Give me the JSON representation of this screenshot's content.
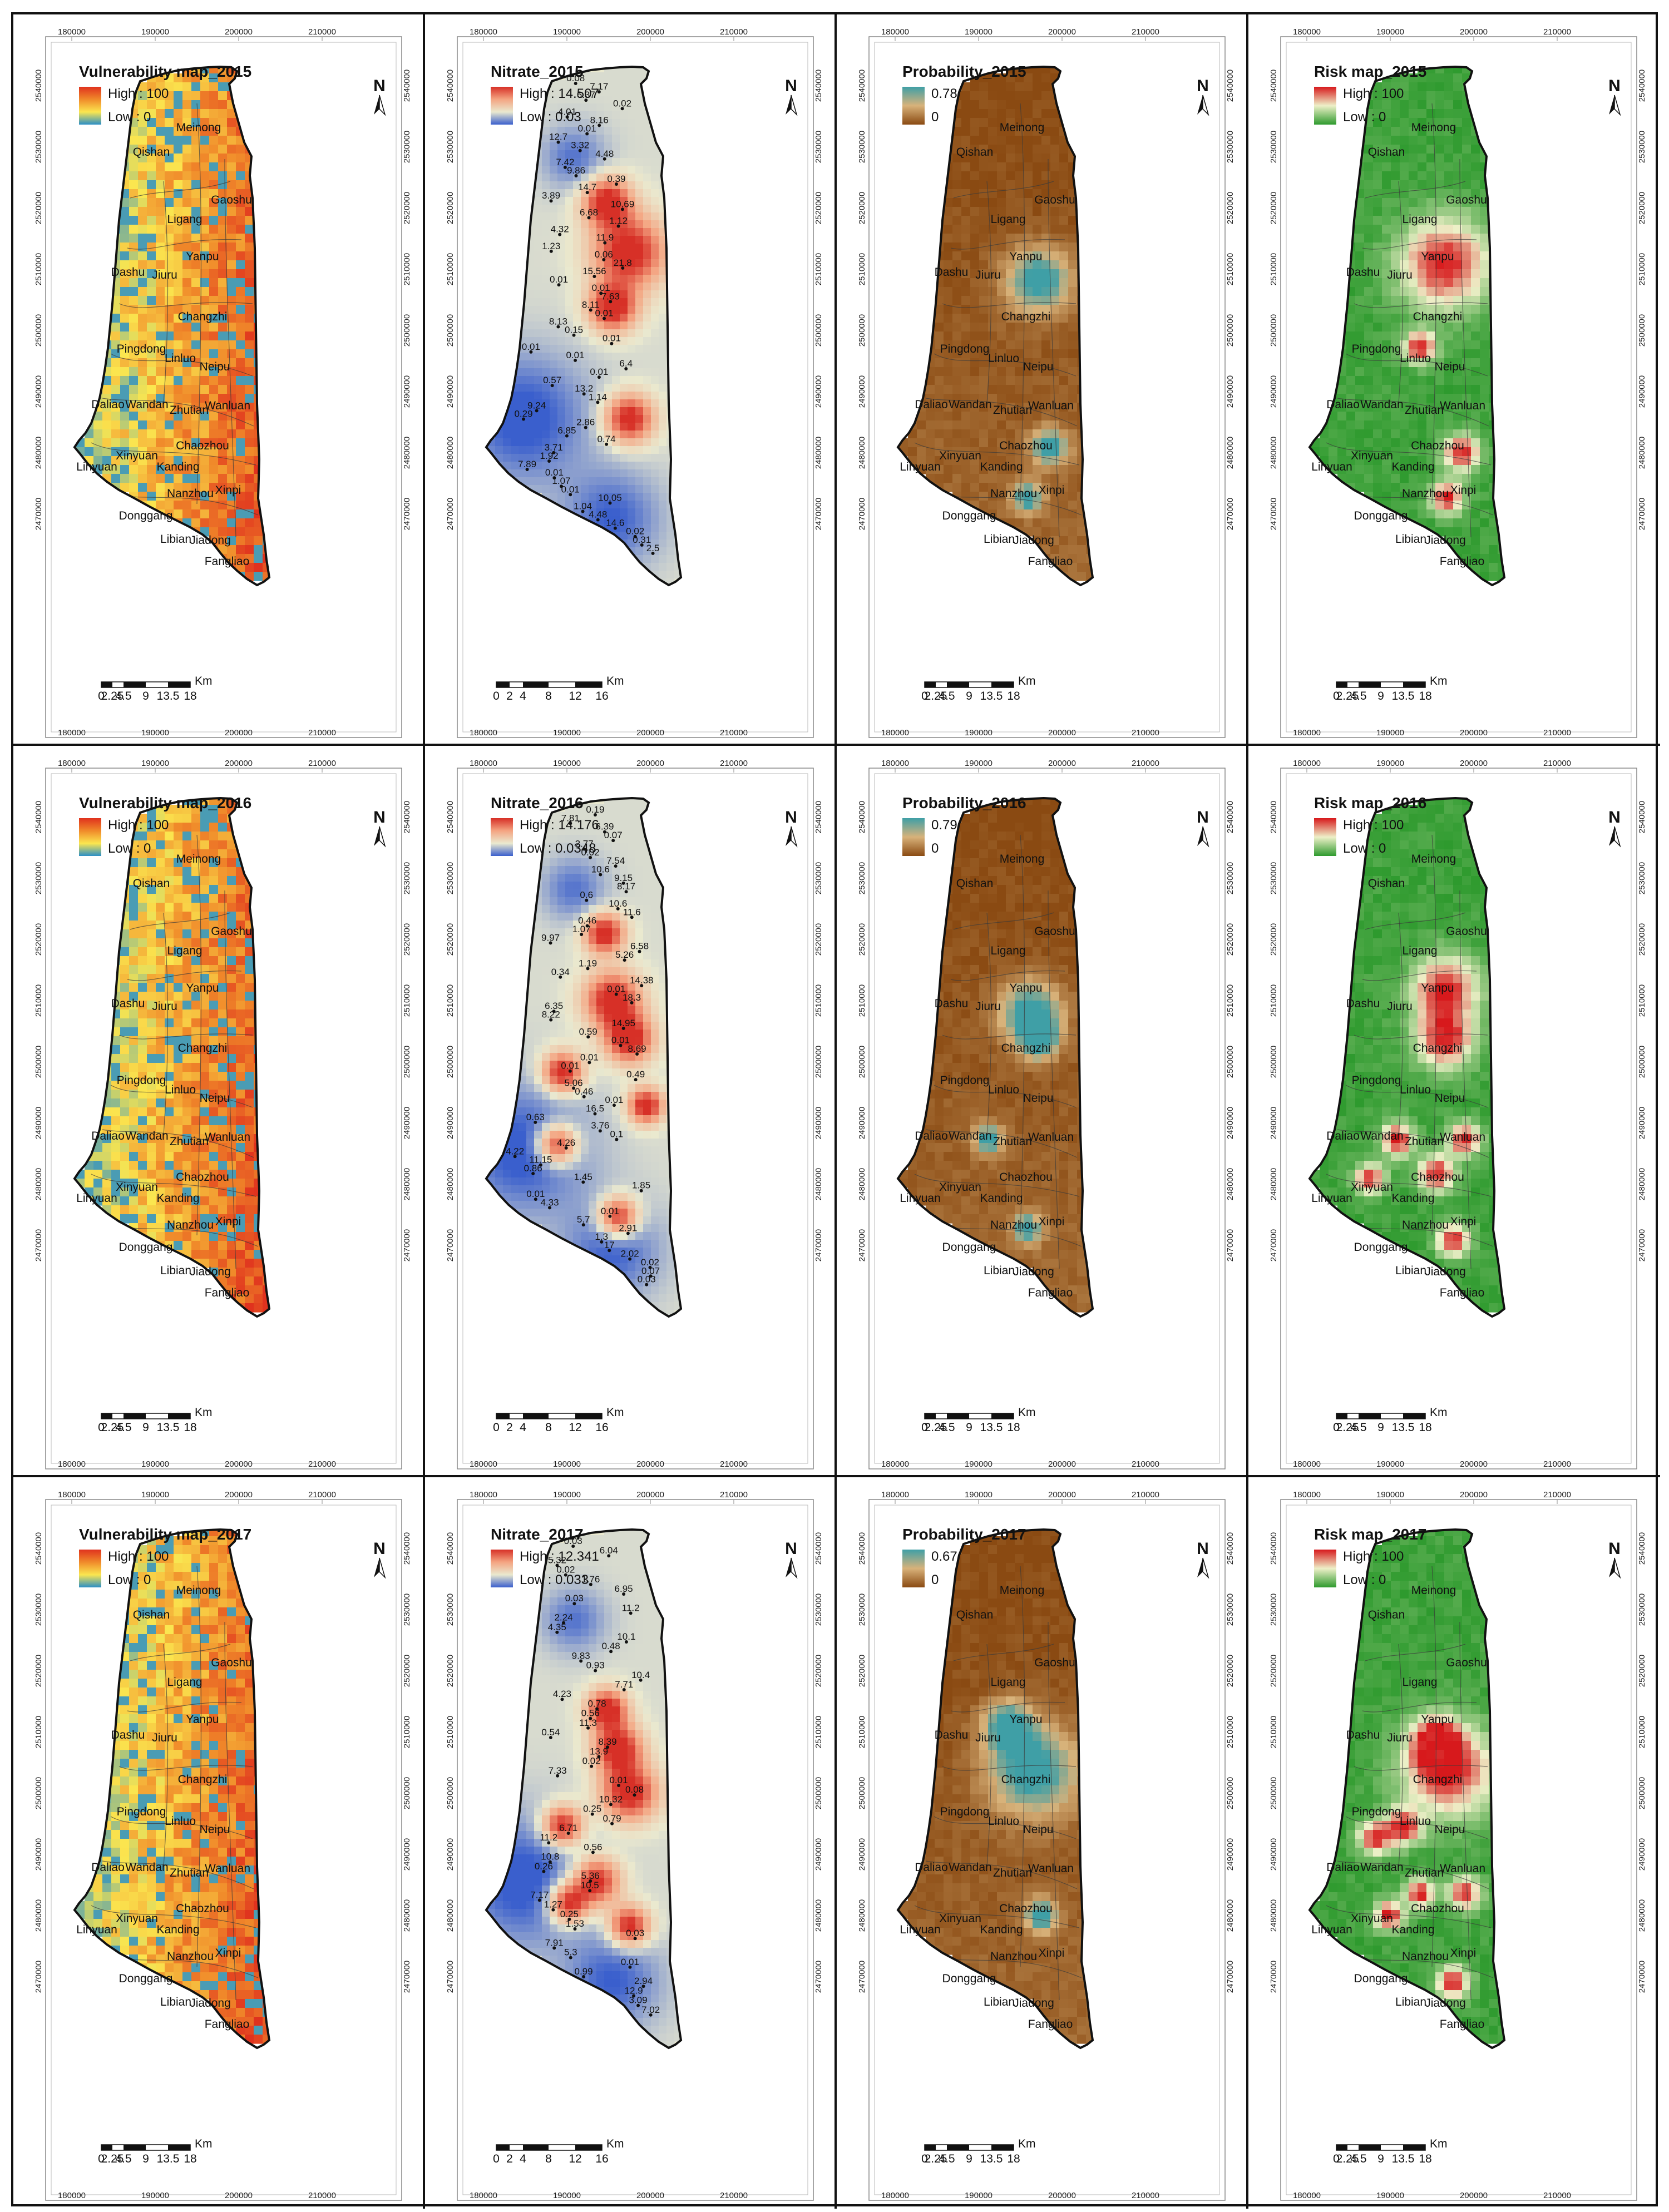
{
  "coords": {
    "x_ticks": [
      "180000",
      "190000",
      "200000",
      "210000"
    ],
    "y_ticks": [
      "2540000",
      "2530000",
      "2520000",
      "2510000",
      "2500000",
      "2490000",
      "2480000",
      "2470000"
    ]
  },
  "north_label": "N",
  "scalebar": {
    "a": {
      "labels": [
        "0",
        "2.25",
        "4.5",
        "9",
        "13.5",
        "18"
      ],
      "unit": "Km"
    },
    "b": {
      "labels": [
        "0",
        "2",
        "4",
        "8",
        "12",
        "16"
      ],
      "unit": "Km"
    }
  },
  "towns": [
    "Meinong",
    "Qishan",
    "Gaoshu",
    "Ligang",
    "Yanpu",
    "Dashu",
    "Jiuru",
    "Changzhi",
    "Pingdong",
    "Linluo",
    "Neipu",
    "Daliao",
    "Wandan",
    "Zhutian",
    "Wanluan",
    "Chaozhou",
    "Xinyuan",
    "Linyuan",
    "Kanding",
    "Nanzhou",
    "Xinpi",
    "Donggang",
    "Libian",
    "Jiadong",
    "Fangliao"
  ],
  "colors": {
    "vuln": [
      "#2b8fc6",
      "#fbe64f",
      "#f08a2a",
      "#e0321e"
    ],
    "nitrate": [
      "#3a5fcd",
      "#eae9cf",
      "#f4a582",
      "#d73027"
    ],
    "prob": [
      "#8a4a12",
      "#d8b27a",
      "#3f9fa6"
    ],
    "risk": [
      "#2e9a2e",
      "#eef0c8",
      "#d7191c"
    ]
  },
  "rows": [
    {
      "year": "2015",
      "vuln": {
        "title": "Vulnerability map_2015",
        "high": "High : 100",
        "low": "Low : 0"
      },
      "nitrate": {
        "title": "Nitrate_2015",
        "high": "High : 14.507",
        "low": "Low : 0.03",
        "values": [
          "0.08",
          "7.17",
          "6.37",
          "0.02",
          "4.01",
          "8.16",
          "0.01",
          "12.7",
          "3.32",
          "4.48",
          "7.42",
          "9.86",
          "0.39",
          "14.7",
          "3.89",
          "10.69",
          "6.68",
          "1.12",
          "4.32",
          "11.9",
          "1.23",
          "0.06",
          "21.8",
          "15.56",
          "0.01",
          "0.01",
          "7.63",
          "8.11",
          "0.01",
          "8.13",
          "0.15",
          "0.01",
          "0.01",
          "0.01",
          "6.4",
          "0.01",
          "0.57",
          "13.2",
          "1.14",
          "9.24",
          "0.29",
          "2.86",
          "6.85",
          "0.74",
          "3.71",
          "1.92",
          "7.89",
          "0.01",
          "1.07",
          "0.01",
          "10.05",
          "1.04",
          "4.48",
          "14.6",
          "0.02",
          "0.31",
          "2.5"
        ]
      },
      "prob": {
        "title": "Probability_2015",
        "high": "0.78",
        "low": "0"
      },
      "risk": {
        "title": "Risk map_2015",
        "high": "High : 100",
        "low": "Low : 0"
      }
    },
    {
      "year": "2016",
      "vuln": {
        "title": "Vulnerability map_2016",
        "high": "High : 100",
        "low": "Low : 0"
      },
      "nitrate": {
        "title": "Nitrate_2016",
        "high": "High : 14.176",
        "low": "Low : 0.0348",
        "values": [
          "0.19",
          "7.81",
          "6.39",
          "0.07",
          "2.77",
          "0.02",
          "7.54",
          "10.6",
          "9.15",
          "8.17",
          "0.6",
          "10.6",
          "11.6",
          "0.46",
          "1.07",
          "9.97",
          "6.58",
          "5.26",
          "1.19",
          "0.34",
          "14.38",
          "0.01",
          "18.3",
          "6.35",
          "8.22",
          "14.95",
          "0.59",
          "0.01",
          "8.69",
          "0.01",
          "0.01",
          "0.49",
          "5.06",
          "0.46",
          "0.01",
          "16.5",
          "0.63",
          "3.76",
          "0.1",
          "4.26",
          "4.22",
          "11.15",
          "0.86",
          "1.45",
          "1.85",
          "0.01",
          "4.33",
          "0.01",
          "5.7",
          "2.91",
          "1.3",
          "17",
          "2.02",
          "0.02",
          "0.07",
          "0.03"
        ]
      },
      "prob": {
        "title": "Probability_2016",
        "high": "0.79",
        "low": "0"
      },
      "risk": {
        "title": "Risk map_2016",
        "high": "High : 100",
        "low": "Low : 0"
      }
    },
    {
      "year": "2017",
      "vuln": {
        "title": "Vulnerability map_2017",
        "high": "High : 100",
        "low": "Low : 0"
      },
      "nitrate": {
        "title": "Nitrate_2017",
        "high": "High : 12.341",
        "low": "Low : 0.033",
        "values": [
          "0.03",
          "6.04",
          "5.32",
          "0.02",
          "1.76",
          "6.95",
          "0.03",
          "11.2",
          "2.24",
          "4.35",
          "10.1",
          "0.48",
          "9.83",
          "0.93",
          "10.4",
          "7.71",
          "4.23",
          "0.78",
          "0.56",
          "11.3",
          "0.54",
          "8.39",
          "13.9",
          "0.02",
          "7.33",
          "0.01",
          "0.08",
          "10.32",
          "0.25",
          "0.79",
          "6.71",
          "11.2",
          "0.56",
          "10.8",
          "0.26",
          "5.36",
          "10.5",
          "7.17",
          "1.27",
          "0.25",
          "1.53",
          "0.03",
          "7.91",
          "5.3",
          "0.01",
          "0.99",
          "2.94",
          "12.9",
          "3.09",
          "7.02"
        ]
      },
      "prob": {
        "title": "Probability_2017",
        "high": "0.67",
        "low": "0"
      },
      "risk": {
        "title": "Risk map_2017",
        "high": "High : 100",
        "low": "Low : 0"
      }
    }
  ]
}
